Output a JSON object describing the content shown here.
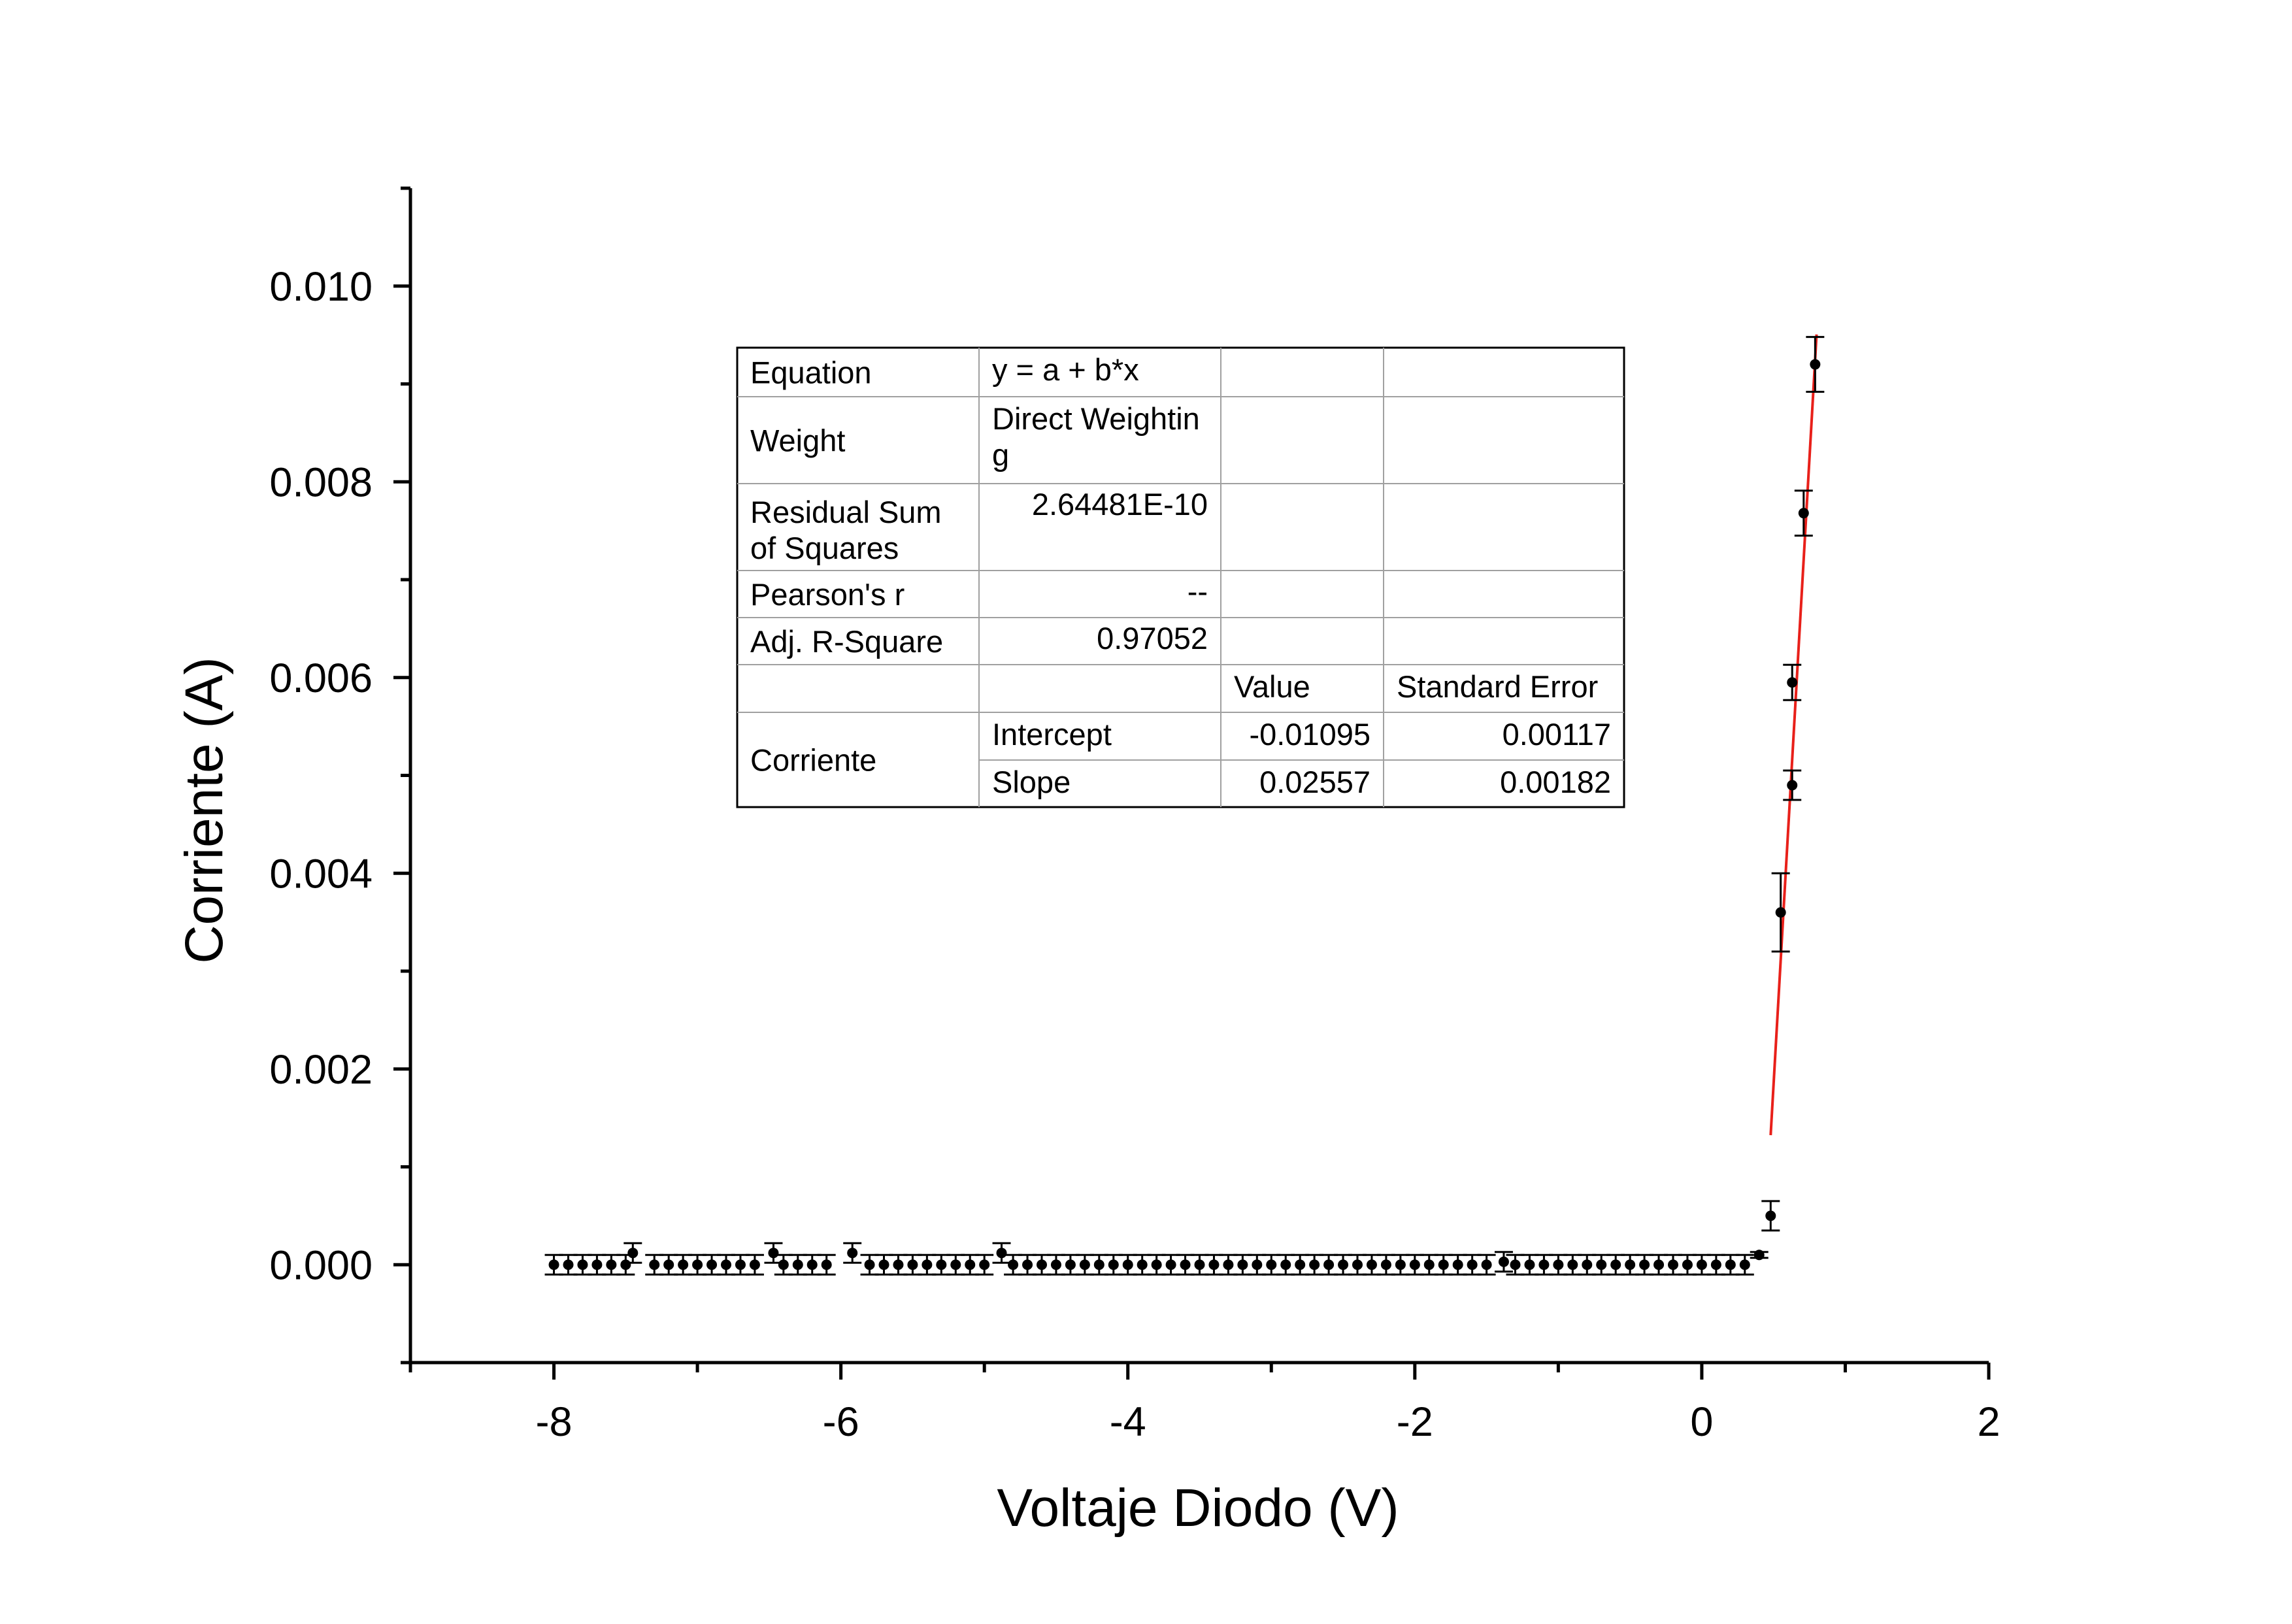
{
  "chart_data": {
    "type": "scatter",
    "xlabel": "Voltaje Diodo (V)",
    "ylabel": "Corriente (A)",
    "xlim": [
      -9,
      2
    ],
    "ylim": [
      -0.001,
      0.011
    ],
    "x_ticks": [
      -8,
      -6,
      -4,
      -2,
      0,
      2
    ],
    "x_tick_labels": [
      "-8",
      "-6",
      "-4",
      "-2",
      "0",
      "2"
    ],
    "y_ticks": [
      0.0,
      0.002,
      0.004,
      0.006,
      0.008,
      0.01
    ],
    "y_tick_labels": [
      "0.000",
      "0.002",
      "0.004",
      "0.006",
      "0.008",
      "0.010"
    ],
    "grid": false,
    "series": [
      {
        "type": "scatter-errorbars",
        "points": [
          {
            "x": -8.0,
            "y": 0.0,
            "err": 0.0001
          },
          {
            "x": -7.9,
            "y": 0.0,
            "err": 0.0001
          },
          {
            "x": -7.8,
            "y": 0.0,
            "err": 0.0001
          },
          {
            "x": -7.7,
            "y": 0.0,
            "err": 0.0001
          },
          {
            "x": -7.6,
            "y": 0.0,
            "err": 0.0001
          },
          {
            "x": -7.5,
            "y": 0.0,
            "err": 0.0001
          },
          {
            "x": -7.45,
            "y": 0.00012,
            "err": 0.0001
          },
          {
            "x": -7.3,
            "y": 0.0,
            "err": 0.0001
          },
          {
            "x": -7.2,
            "y": 0.0,
            "err": 0.0001
          },
          {
            "x": -7.1,
            "y": 0.0,
            "err": 0.0001
          },
          {
            "x": -7.0,
            "y": 0.0,
            "err": 0.0001
          },
          {
            "x": -6.9,
            "y": 0.0,
            "err": 0.0001
          },
          {
            "x": -6.8,
            "y": 0.0,
            "err": 0.0001
          },
          {
            "x": -6.7,
            "y": 0.0,
            "err": 0.0001
          },
          {
            "x": -6.6,
            "y": 0.0,
            "err": 0.0001
          },
          {
            "x": -6.47,
            "y": 0.00012,
            "err": 0.0001
          },
          {
            "x": -6.4,
            "y": 0.0,
            "err": 0.0001
          },
          {
            "x": -6.3,
            "y": 0.0,
            "err": 0.0001
          },
          {
            "x": -6.2,
            "y": 0.0,
            "err": 0.0001
          },
          {
            "x": -6.1,
            "y": 0.0,
            "err": 0.0001
          },
          {
            "x": -5.92,
            "y": 0.00012,
            "err": 0.0001
          },
          {
            "x": -5.8,
            "y": 0.0,
            "err": 0.0001
          },
          {
            "x": -5.7,
            "y": 0.0,
            "err": 0.0001
          },
          {
            "x": -5.6,
            "y": 0.0,
            "err": 0.0001
          },
          {
            "x": -5.5,
            "y": 0.0,
            "err": 0.0001
          },
          {
            "x": -5.4,
            "y": 0.0,
            "err": 0.0001
          },
          {
            "x": -5.3,
            "y": 0.0,
            "err": 0.0001
          },
          {
            "x": -5.2,
            "y": 0.0,
            "err": 0.0001
          },
          {
            "x": -5.1,
            "y": 0.0,
            "err": 0.0001
          },
          {
            "x": -5.0,
            "y": 0.0,
            "err": 0.0001
          },
          {
            "x": -4.88,
            "y": 0.00012,
            "err": 0.0001
          },
          {
            "x": -4.8,
            "y": 0.0,
            "err": 0.0001
          },
          {
            "x": -4.7,
            "y": 0.0,
            "err": 0.0001
          },
          {
            "x": -4.6,
            "y": 0.0,
            "err": 0.0001
          },
          {
            "x": -4.5,
            "y": 0.0,
            "err": 0.0001
          },
          {
            "x": -4.4,
            "y": 0.0,
            "err": 0.0001
          },
          {
            "x": -4.3,
            "y": 0.0,
            "err": 0.0001
          },
          {
            "x": -4.2,
            "y": 0.0,
            "err": 0.0001
          },
          {
            "x": -4.1,
            "y": 0.0,
            "err": 0.0001
          },
          {
            "x": -4.0,
            "y": 0.0,
            "err": 0.0001
          },
          {
            "x": -3.9,
            "y": 0.0,
            "err": 0.0001
          },
          {
            "x": -3.8,
            "y": 0.0,
            "err": 0.0001
          },
          {
            "x": -3.7,
            "y": 0.0,
            "err": 0.0001
          },
          {
            "x": -3.6,
            "y": 0.0,
            "err": 0.0001
          },
          {
            "x": -3.5,
            "y": 0.0,
            "err": 0.0001
          },
          {
            "x": -3.4,
            "y": 0.0,
            "err": 0.0001
          },
          {
            "x": -3.3,
            "y": 0.0,
            "err": 0.0001
          },
          {
            "x": -3.2,
            "y": 0.0,
            "err": 0.0001
          },
          {
            "x": -3.1,
            "y": 0.0,
            "err": 0.0001
          },
          {
            "x": -3.0,
            "y": 0.0,
            "err": 0.0001
          },
          {
            "x": -2.9,
            "y": 0.0,
            "err": 0.0001
          },
          {
            "x": -2.8,
            "y": 0.0,
            "err": 0.0001
          },
          {
            "x": -2.7,
            "y": 0.0,
            "err": 0.0001
          },
          {
            "x": -2.6,
            "y": 0.0,
            "err": 0.0001
          },
          {
            "x": -2.5,
            "y": 0.0,
            "err": 0.0001
          },
          {
            "x": -2.4,
            "y": 0.0,
            "err": 0.0001
          },
          {
            "x": -2.3,
            "y": 0.0,
            "err": 0.0001
          },
          {
            "x": -2.2,
            "y": 0.0,
            "err": 0.0001
          },
          {
            "x": -2.1,
            "y": 0.0,
            "err": 0.0001
          },
          {
            "x": -2.0,
            "y": 0.0,
            "err": 0.0001
          },
          {
            "x": -1.9,
            "y": 0.0,
            "err": 0.0001
          },
          {
            "x": -1.8,
            "y": 0.0,
            "err": 0.0001
          },
          {
            "x": -1.7,
            "y": 0.0,
            "err": 0.0001
          },
          {
            "x": -1.6,
            "y": 0.0,
            "err": 0.0001
          },
          {
            "x": -1.5,
            "y": 0.0,
            "err": 0.0001
          },
          {
            "x": -1.38,
            "y": 3e-05,
            "err": 0.0001
          },
          {
            "x": -1.3,
            "y": 0.0,
            "err": 0.0001
          },
          {
            "x": -1.2,
            "y": 0.0,
            "err": 0.0001
          },
          {
            "x": -1.1,
            "y": 0.0,
            "err": 0.0001
          },
          {
            "x": -1.0,
            "y": 0.0,
            "err": 0.0001
          },
          {
            "x": -0.9,
            "y": 0.0,
            "err": 0.0001
          },
          {
            "x": -0.8,
            "y": 0.0,
            "err": 0.0001
          },
          {
            "x": -0.7,
            "y": 0.0,
            "err": 0.0001
          },
          {
            "x": -0.6,
            "y": 0.0,
            "err": 0.0001
          },
          {
            "x": -0.5,
            "y": 0.0,
            "err": 0.0001
          },
          {
            "x": -0.4,
            "y": 0.0,
            "err": 0.0001
          },
          {
            "x": -0.3,
            "y": 0.0,
            "err": 0.0001
          },
          {
            "x": -0.2,
            "y": 0.0,
            "err": 0.0001
          },
          {
            "x": -0.1,
            "y": 0.0,
            "err": 0.0001
          },
          {
            "x": 0.0,
            "y": 0.0,
            "err": 0.0001
          },
          {
            "x": 0.1,
            "y": 0.0,
            "err": 0.0001
          },
          {
            "x": 0.2,
            "y": 0.0,
            "err": 0.0001
          },
          {
            "x": 0.3,
            "y": 0.0,
            "err": 0.0001
          },
          {
            "x": 0.4,
            "y": 0.0001,
            "err": 3e-05
          },
          {
            "x": 0.48,
            "y": 0.0005,
            "err": 0.00015
          },
          {
            "x": 0.55,
            "y": 0.0036,
            "err": 0.0004
          },
          {
            "x": 0.63,
            "y": 0.0049,
            "err": 0.00015
          },
          {
            "x": 0.63,
            "y": 0.00595,
            "err": 0.00018
          },
          {
            "x": 0.71,
            "y": 0.00768,
            "err": 0.00023
          },
          {
            "x": 0.79,
            "y": 0.0092,
            "err": 0.00028
          }
        ]
      },
      {
        "type": "fit-line",
        "color": "#e8201a",
        "intercept": -0.01095,
        "slope": 0.02557,
        "x_range": [
          0.48,
          0.8
        ]
      }
    ],
    "fit_table": {
      "rows": [
        {
          "label": "Equation",
          "value": "y = a + b*x"
        },
        {
          "label": "Weight",
          "value_lines": [
            "Direct Weightin",
            "g"
          ]
        },
        {
          "label_lines": [
            "Residual Sum",
            "of Squares"
          ],
          "value": "2.64481E-10"
        },
        {
          "label": "Pearson's r",
          "value": "--"
        },
        {
          "label": "Adj. R-Square",
          "value": "0.97052"
        }
      ],
      "header": {
        "value": "Value",
        "stderr": "Standard Error"
      },
      "group_label": "Corriente",
      "params": [
        {
          "name": "Intercept",
          "value": "-0.01095",
          "stderr": "0.00117"
        },
        {
          "name": "Slope",
          "value": "0.02557",
          "stderr": "0.00182"
        }
      ]
    }
  }
}
